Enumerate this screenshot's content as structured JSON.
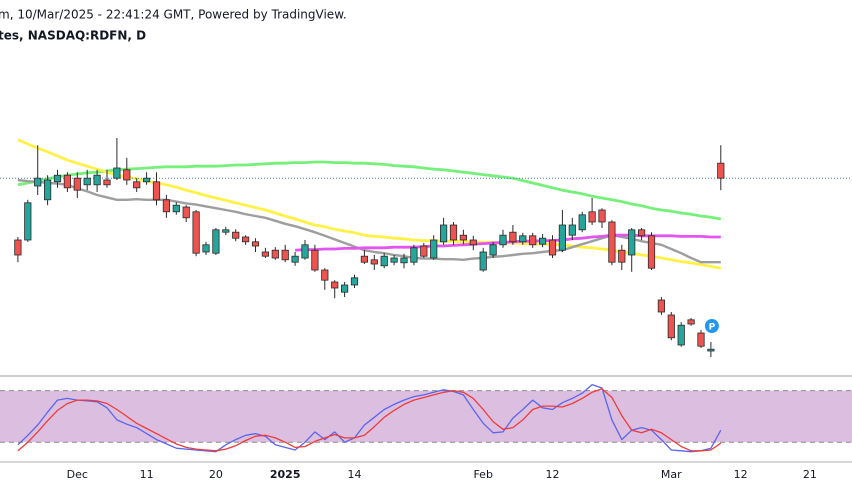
{
  "chart_data": [
    {
      "type": "candlestick",
      "title": "m, 10/Mar/2025 - 22:41:24 GMT, Powered by TradingView.",
      "subtitle": "tes, NASDAQ:RDFN, D",
      "categories": [
        null,
        null,
        null,
        null,
        null,
        null,
        "Dec",
        null,
        null,
        null,
        null,
        null,
        null,
        "11",
        null,
        null,
        null,
        null,
        null,
        null,
        "20",
        null,
        null,
        null,
        null,
        null,
        null,
        "2025",
        null,
        null,
        null,
        null,
        null,
        null,
        "14",
        null,
        null,
        null,
        null,
        null,
        null,
        null,
        null,
        null,
        null,
        null,
        null,
        "Feb",
        null,
        null,
        null,
        null,
        null,
        null,
        "12",
        null,
        null,
        null,
        null,
        null,
        null,
        null,
        null,
        null,
        null,
        null,
        "Mar",
        null,
        null,
        null,
        null,
        null,
        null,
        "12",
        null,
        null,
        null,
        null,
        null,
        null,
        "21",
        null,
        null,
        null,
        null
      ],
      "open": [
        7.5,
        7.5,
        8.4,
        8.17,
        8.47,
        8.58,
        8.53,
        8.42,
        8.42,
        8.5,
        8.53,
        8.67,
        8.47,
        8.47,
        8.47,
        8.17,
        7.97,
        8.05,
        7.97,
        7.3,
        7.28,
        7.63,
        7.63,
        7.55,
        7.47,
        7.3,
        7.33,
        7.33,
        7.13,
        7.2,
        7.33,
        7.0,
        6.8,
        6.63,
        6.75,
        7.23,
        7.17,
        7.07,
        7.13,
        7.12,
        7.13,
        7.4,
        7.2,
        7.47,
        7.75,
        7.58,
        7.5,
        7.0,
        7.25,
        7.42,
        7.63,
        7.47,
        7.57,
        7.43,
        7.5,
        7.33,
        7.58,
        7.67,
        7.97,
        8.0,
        7.8,
        7.33,
        7.25,
        7.67,
        7.57,
        6.5,
        6.25,
        5.75,
        6.17,
        5.95,
        5.65,
        8.78,
        null,
        null,
        null,
        null,
        null,
        null,
        null,
        null,
        null,
        null,
        null,
        null,
        null
      ],
      "high": [
        7.55,
        8.17,
        9.08,
        8.58,
        8.67,
        8.63,
        8.63,
        8.67,
        8.67,
        8.67,
        9.2,
        8.87,
        8.53,
        8.63,
        8.63,
        8.25,
        8.13,
        8.08,
        8.0,
        7.47,
        7.7,
        7.72,
        7.68,
        7.58,
        7.53,
        7.37,
        7.38,
        7.42,
        7.3,
        7.5,
        7.42,
        7.03,
        6.83,
        6.8,
        6.92,
        7.33,
        7.25,
        7.28,
        7.25,
        7.27,
        7.42,
        7.45,
        7.58,
        7.87,
        7.8,
        7.67,
        7.57,
        7.37,
        7.47,
        7.67,
        7.75,
        7.62,
        7.62,
        7.6,
        7.58,
        8.0,
        7.87,
        7.97,
        8.2,
        8.03,
        7.83,
        7.42,
        7.7,
        7.7,
        7.63,
        6.55,
        6.3,
        6.13,
        6.2,
        6.0,
        5.8,
        9.08,
        null,
        null,
        null,
        null,
        null,
        null,
        null,
        null,
        null,
        null,
        null,
        null,
        null
      ],
      "low": [
        7.13,
        7.47,
        8.25,
        8.08,
        8.37,
        8.3,
        8.2,
        8.33,
        8.3,
        8.37,
        8.5,
        8.42,
        8.3,
        8.42,
        8.08,
        7.87,
        7.92,
        7.8,
        7.23,
        7.25,
        7.25,
        7.58,
        7.48,
        7.42,
        7.3,
        7.2,
        7.17,
        7.13,
        7.07,
        7.17,
        6.97,
        6.67,
        6.53,
        6.55,
        6.7,
        7.1,
        7.0,
        7.03,
        7.08,
        7.03,
        7.08,
        7.2,
        7.17,
        7.42,
        7.42,
        7.43,
        7.33,
        6.97,
        7.2,
        7.37,
        7.42,
        7.42,
        7.37,
        7.38,
        7.2,
        7.3,
        7.5,
        7.63,
        7.75,
        7.7,
        7.08,
        7.0,
        6.97,
        7.5,
        7.0,
        6.25,
        5.83,
        5.72,
        6.07,
        5.7,
        5.55,
        8.33,
        null,
        null,
        null,
        null,
        null,
        null,
        null,
        null,
        null,
        null,
        null,
        null,
        null
      ],
      "close": [
        7.25,
        8.12,
        8.53,
        8.5,
        8.58,
        8.37,
        8.33,
        8.53,
        8.58,
        8.42,
        8.7,
        8.5,
        8.37,
        8.53,
        8.17,
        7.97,
        8.08,
        7.87,
        7.28,
        7.42,
        7.67,
        7.67,
        7.53,
        7.47,
        7.4,
        7.23,
        7.2,
        7.17,
        7.23,
        7.42,
        7.0,
        6.83,
        6.7,
        6.75,
        6.87,
        7.13,
        7.1,
        7.23,
        7.2,
        7.2,
        7.37,
        7.23,
        7.5,
        7.75,
        7.5,
        7.5,
        7.42,
        7.3,
        7.42,
        7.58,
        7.47,
        7.57,
        7.42,
        7.53,
        7.25,
        7.75,
        7.75,
        7.92,
        7.8,
        7.8,
        7.13,
        7.13,
        7.67,
        7.57,
        7.03,
        6.3,
        5.87,
        6.08,
        6.1,
        5.73,
        5.68,
        8.53,
        null,
        null,
        null,
        null,
        null,
        null,
        null,
        null,
        null,
        null,
        null,
        null,
        null
      ],
      "up_color": "#26a69a",
      "down_color": "#ef5350",
      "last_price_color": "#4a7bd0",
      "ylim": [
        5.25,
        11.5
      ],
      "series": [
        {
          "color": "#76f07a",
          "values": [
            8.42,
            8.45,
            8.48,
            8.52,
            8.55,
            8.58,
            8.6,
            8.62,
            8.63,
            8.65,
            8.67,
            8.68,
            8.69,
            8.7,
            8.71,
            8.72,
            8.72,
            8.72,
            8.73,
            8.73,
            8.73,
            8.74,
            8.75,
            8.75,
            8.76,
            8.77,
            8.78,
            8.78,
            8.79,
            8.79,
            8.8,
            8.8,
            8.79,
            8.79,
            8.78,
            8.78,
            8.77,
            8.76,
            8.74,
            8.73,
            8.72,
            8.7,
            8.68,
            8.67,
            8.65,
            8.63,
            8.61,
            8.59,
            8.57,
            8.55,
            8.53,
            8.49,
            8.45,
            8.41,
            8.37,
            8.33,
            8.3,
            8.27,
            8.23,
            8.2,
            8.17,
            8.14,
            8.1,
            8.07,
            8.03,
            8.0,
            7.98,
            7.95,
            7.93,
            7.9,
            7.88,
            7.85,
            null,
            null,
            null,
            null,
            null,
            null,
            null,
            null,
            null,
            null,
            null,
            null,
            null
          ]
        },
        {
          "color": "#fff145",
          "values": [
            9.17,
            9.1,
            9.03,
            8.97,
            8.9,
            8.83,
            8.78,
            8.73,
            8.68,
            8.63,
            8.58,
            8.55,
            8.52,
            8.48,
            8.45,
            8.42,
            8.38,
            8.33,
            8.29,
            8.24,
            8.2,
            8.16,
            8.12,
            8.08,
            8.04,
            8.0,
            7.95,
            7.9,
            7.85,
            7.8,
            7.75,
            7.72,
            7.68,
            7.65,
            7.62,
            7.58,
            7.56,
            7.55,
            7.53,
            7.52,
            7.5,
            7.49,
            7.49,
            7.48,
            7.48,
            7.47,
            7.47,
            7.46,
            7.46,
            7.45,
            7.45,
            7.44,
            7.44,
            7.43,
            7.43,
            7.42,
            7.4,
            7.38,
            7.37,
            7.35,
            7.33,
            7.3,
            7.28,
            7.25,
            7.23,
            7.2,
            7.17,
            7.14,
            7.12,
            7.09,
            7.06,
            7.03,
            null,
            null,
            null,
            null,
            null,
            null,
            null,
            null,
            null,
            null,
            null,
            null,
            null
          ]
        },
        {
          "color": "#9e9e9e",
          "values": [
            8.5,
            8.48,
            8.47,
            8.45,
            8.44,
            8.42,
            8.36,
            8.31,
            8.25,
            8.21,
            8.17,
            8.17,
            8.18,
            8.17,
            8.17,
            8.17,
            8.14,
            8.11,
            8.09,
            8.06,
            8.03,
            8.0,
            7.97,
            7.93,
            7.9,
            7.87,
            7.82,
            7.77,
            7.73,
            7.68,
            7.63,
            7.57,
            7.51,
            7.45,
            7.39,
            7.33,
            7.3,
            7.28,
            7.25,
            7.23,
            7.2,
            7.19,
            7.19,
            7.18,
            7.18,
            7.17,
            7.19,
            7.2,
            7.22,
            7.23,
            7.25,
            7.27,
            7.28,
            7.3,
            7.32,
            7.33,
            7.38,
            7.43,
            7.48,
            7.53,
            7.58,
            7.55,
            7.52,
            7.48,
            7.45,
            7.42,
            7.35,
            7.28,
            7.2,
            7.13,
            7.13,
            7.13,
            null,
            null,
            null,
            null,
            null,
            null,
            null,
            null,
            null,
            null,
            null,
            null,
            null
          ]
        },
        {
          "color": "#e354f0",
          "values": [
            null,
            null,
            null,
            null,
            null,
            null,
            null,
            null,
            null,
            null,
            null,
            null,
            null,
            null,
            null,
            null,
            null,
            null,
            null,
            null,
            null,
            null,
            null,
            null,
            null,
            null,
            null,
            null,
            7.33,
            7.34,
            7.34,
            7.35,
            7.35,
            7.36,
            7.36,
            7.37,
            7.37,
            7.37,
            7.38,
            7.38,
            7.38,
            7.39,
            7.4,
            7.4,
            7.41,
            7.42,
            7.43,
            7.44,
            7.45,
            7.46,
            7.47,
            7.48,
            7.48,
            7.49,
            7.49,
            7.5,
            7.52,
            7.53,
            7.55,
            7.56,
            7.58,
            7.58,
            7.58,
            7.57,
            7.57,
            7.57,
            7.57,
            7.56,
            7.56,
            7.56,
            7.55,
            7.55,
            null,
            null,
            null,
            null,
            null,
            null,
            null,
            null,
            null,
            null,
            null,
            null,
            null
          ]
        }
      ],
      "annotations": [
        "P"
      ]
    },
    {
      "type": "line",
      "ylim": [
        -3,
        97
      ],
      "band": [
        20,
        80
      ],
      "band_color": "#dcbfe0",
      "series": [
        {
          "color": "#5965ee",
          "values": [
            17,
            28,
            40,
            55,
            69,
            71,
            69,
            68,
            67,
            60,
            46,
            41,
            37,
            30,
            23,
            18,
            13,
            12,
            11,
            10,
            9,
            17,
            23,
            28,
            30,
            27,
            17,
            14,
            11,
            20,
            32,
            23,
            32,
            20,
            25,
            40,
            49,
            58,
            64,
            69,
            73,
            75,
            78,
            81,
            79,
            75,
            58,
            42,
            31,
            32,
            48,
            58,
            69,
            60,
            58,
            66,
            71,
            77,
            87,
            83,
            46,
            23,
            34,
            37,
            34,
            23,
            11,
            10,
            9,
            10,
            13,
            34,
            null,
            null,
            null,
            null,
            null,
            null,
            null,
            null,
            null,
            null,
            null,
            null,
            null
          ]
        },
        {
          "color": "#ee3b3b",
          "values": [
            10,
            20,
            32,
            45,
            57,
            65,
            69,
            69,
            68,
            65,
            58,
            50,
            42,
            36,
            30,
            24,
            18,
            14,
            12,
            11,
            10,
            12,
            16,
            22,
            27,
            28,
            25,
            20,
            14,
            15,
            21,
            25,
            29,
            25,
            25,
            28,
            38,
            49,
            57,
            64,
            69,
            72,
            75,
            78,
            80,
            78,
            71,
            58,
            44,
            35,
            37,
            46,
            58,
            62,
            62,
            61,
            65,
            71,
            78,
            82,
            72,
            51,
            34,
            31,
            35,
            31,
            23,
            15,
            10,
            10,
            11,
            19,
            null,
            null,
            null,
            null,
            null,
            null,
            null,
            null,
            null,
            null,
            null,
            null,
            null
          ]
        }
      ]
    }
  ]
}
